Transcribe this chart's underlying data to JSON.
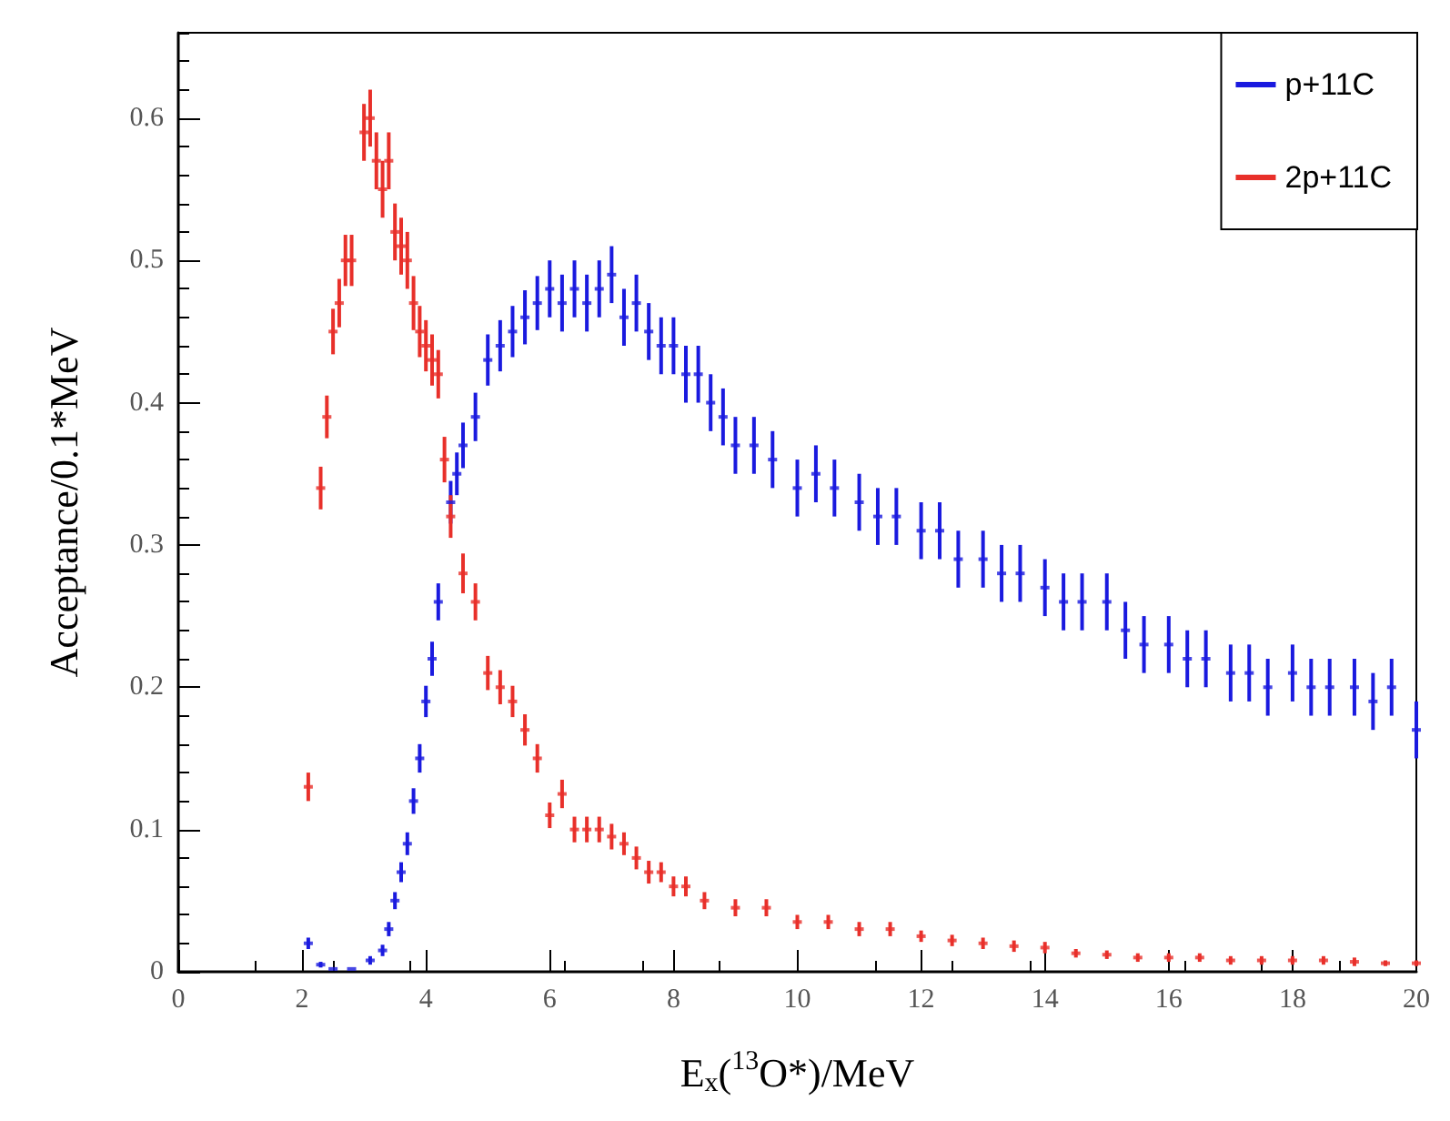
{
  "chart_data": {
    "type": "scatter",
    "xlabel": "E$_{x}$($^{13}$O*)/MeV",
    "ylabel": "Acceptance/0.1*MeV",
    "xlim": [
      0,
      20
    ],
    "xticks": [
      0,
      2,
      4,
      6,
      8,
      10,
      12,
      14,
      16,
      18,
      20
    ],
    "ylim": [
      0,
      0.66
    ],
    "yticks": [
      0,
      0.1,
      0.2,
      0.3,
      0.4,
      0.5,
      0.6
    ],
    "legend": "top right",
    "grid": false,
    "series": [
      {
        "name": "p+11C",
        "color": "#1a1adf",
        "x": [
          2.1,
          2.3,
          2.5,
          2.8,
          3.1,
          3.3,
          3.4,
          3.5,
          3.6,
          3.7,
          3.8,
          3.9,
          4.0,
          4.1,
          4.2,
          4.4,
          4.5,
          4.6,
          4.8,
          5.0,
          5.2,
          5.4,
          5.6,
          5.8,
          6.0,
          6.2,
          6.4,
          6.6,
          6.8,
          7.0,
          7.2,
          7.4,
          7.6,
          7.8,
          8.0,
          8.2,
          8.4,
          8.6,
          8.8,
          9.0,
          9.3,
          9.6,
          10.0,
          10.3,
          10.6,
          11.0,
          11.3,
          11.6,
          12.0,
          12.3,
          12.6,
          13.0,
          13.3,
          13.6,
          14.0,
          14.3,
          14.6,
          15.0,
          15.3,
          15.6,
          16.0,
          16.3,
          16.6,
          17.0,
          17.3,
          17.6,
          18.0,
          18.3,
          18.6,
          19.0,
          19.3,
          19.6,
          20.0
        ],
        "values": [
          0.02,
          0.005,
          0.002,
          0.002,
          0.008,
          0.015,
          0.03,
          0.05,
          0.07,
          0.09,
          0.12,
          0.15,
          0.19,
          0.22,
          0.26,
          0.33,
          0.35,
          0.37,
          0.39,
          0.43,
          0.44,
          0.45,
          0.46,
          0.47,
          0.48,
          0.47,
          0.48,
          0.47,
          0.48,
          0.49,
          0.46,
          0.47,
          0.45,
          0.44,
          0.44,
          0.42,
          0.42,
          0.4,
          0.39,
          0.37,
          0.37,
          0.36,
          0.34,
          0.35,
          0.34,
          0.33,
          0.32,
          0.32,
          0.31,
          0.31,
          0.29,
          0.29,
          0.28,
          0.28,
          0.27,
          0.26,
          0.26,
          0.26,
          0.24,
          0.23,
          0.23,
          0.22,
          0.22,
          0.21,
          0.21,
          0.2,
          0.21,
          0.2,
          0.2,
          0.2,
          0.19,
          0.2,
          0.17
        ],
        "errors": [
          0.004,
          0.002,
          null,
          null,
          0.003,
          0.004,
          0.005,
          0.006,
          0.007,
          0.008,
          0.009,
          0.01,
          0.011,
          0.012,
          0.013,
          0.015,
          0.015,
          0.016,
          0.017,
          0.018,
          0.018,
          0.018,
          0.019,
          0.019,
          0.02,
          0.02,
          0.02,
          0.02,
          0.02,
          0.02,
          0.02,
          0.02,
          0.02,
          0.02,
          0.02,
          0.02,
          0.02,
          0.02,
          0.02,
          0.02,
          0.02,
          0.02,
          0.02,
          0.02,
          0.02,
          0.02,
          0.02,
          0.02,
          0.02,
          0.02,
          0.02,
          0.02,
          0.02,
          0.02,
          0.02,
          0.02,
          0.02,
          0.02,
          0.02,
          0.02,
          0.02,
          0.02,
          0.02,
          0.02,
          0.02,
          0.02,
          0.02,
          0.02,
          0.02,
          0.02,
          0.02,
          0.02,
          0.02
        ]
      },
      {
        "name": "2p+11C",
        "color": "#e8302a",
        "x": [
          2.1,
          2.3,
          2.4,
          2.5,
          2.6,
          2.7,
          2.8,
          3.0,
          3.1,
          3.2,
          3.3,
          3.4,
          3.5,
          3.6,
          3.7,
          3.8,
          3.9,
          4.0,
          4.1,
          4.2,
          4.3,
          4.4,
          4.6,
          4.8,
          5.0,
          5.2,
          5.4,
          5.6,
          5.8,
          6.0,
          6.2,
          6.4,
          6.6,
          6.8,
          7.0,
          7.2,
          7.4,
          7.6,
          7.8,
          8.0,
          8.2,
          8.5,
          9.0,
          9.5,
          10.0,
          10.5,
          11.0,
          11.5,
          12.0,
          12.5,
          13.0,
          13.5,
          14.0,
          14.5,
          15.0,
          15.5,
          16.0,
          16.5,
          17.0,
          17.5,
          18.0,
          18.5,
          19.0,
          19.5,
          20.0
        ],
        "values": [
          0.13,
          0.34,
          0.39,
          0.45,
          0.47,
          0.5,
          0.5,
          0.59,
          0.6,
          0.57,
          0.55,
          0.57,
          0.52,
          0.51,
          0.5,
          0.47,
          0.45,
          0.44,
          0.43,
          0.42,
          0.36,
          0.32,
          0.28,
          0.26,
          0.21,
          0.2,
          0.19,
          0.17,
          0.15,
          0.11,
          0.125,
          0.1,
          0.1,
          0.1,
          0.095,
          0.09,
          0.08,
          0.07,
          0.07,
          0.06,
          0.06,
          0.05,
          0.045,
          0.045,
          0.035,
          0.035,
          0.03,
          0.03,
          0.025,
          0.022,
          0.02,
          0.018,
          0.017,
          0.013,
          0.012,
          0.01,
          0.01,
          0.01,
          0.008,
          0.008,
          0.008,
          0.008,
          0.007,
          0.006,
          0.006
        ],
        "errors": [
          0.01,
          0.015,
          0.015,
          0.016,
          0.017,
          0.018,
          0.018,
          0.02,
          0.02,
          0.02,
          0.02,
          0.02,
          0.02,
          0.02,
          0.02,
          0.019,
          0.018,
          0.018,
          0.018,
          0.017,
          0.016,
          0.015,
          0.014,
          0.013,
          0.012,
          0.012,
          0.011,
          0.011,
          0.01,
          0.009,
          0.01,
          0.009,
          0.009,
          0.009,
          0.009,
          0.008,
          0.008,
          0.008,
          0.007,
          0.007,
          0.007,
          0.006,
          0.006,
          0.006,
          0.005,
          0.005,
          0.005,
          0.005,
          0.004,
          0.004,
          0.004,
          0.004,
          0.004,
          0.003,
          0.003,
          0.003,
          0.003,
          0.003,
          0.003,
          0.003,
          0.003,
          0.003,
          0.003,
          0.002,
          0.002
        ]
      }
    ]
  }
}
